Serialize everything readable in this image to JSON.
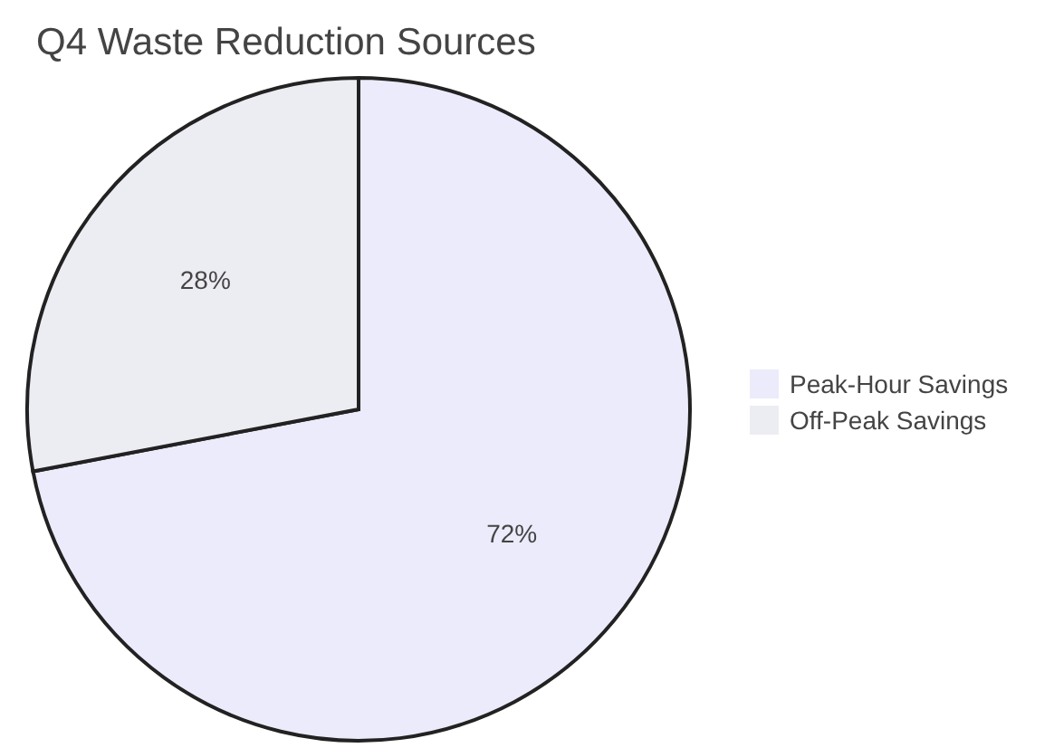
{
  "chart_data": {
    "type": "pie",
    "title": "Q4 Waste Reduction Sources",
    "categories": [
      "Peak-Hour Savings",
      "Off-Peak Savings"
    ],
    "values": [
      72,
      28
    ],
    "colors": [
      "#ebebfb",
      "#ececf3"
    ],
    "legend": "right",
    "value_labels": [
      "72%",
      "28%"
    ]
  }
}
